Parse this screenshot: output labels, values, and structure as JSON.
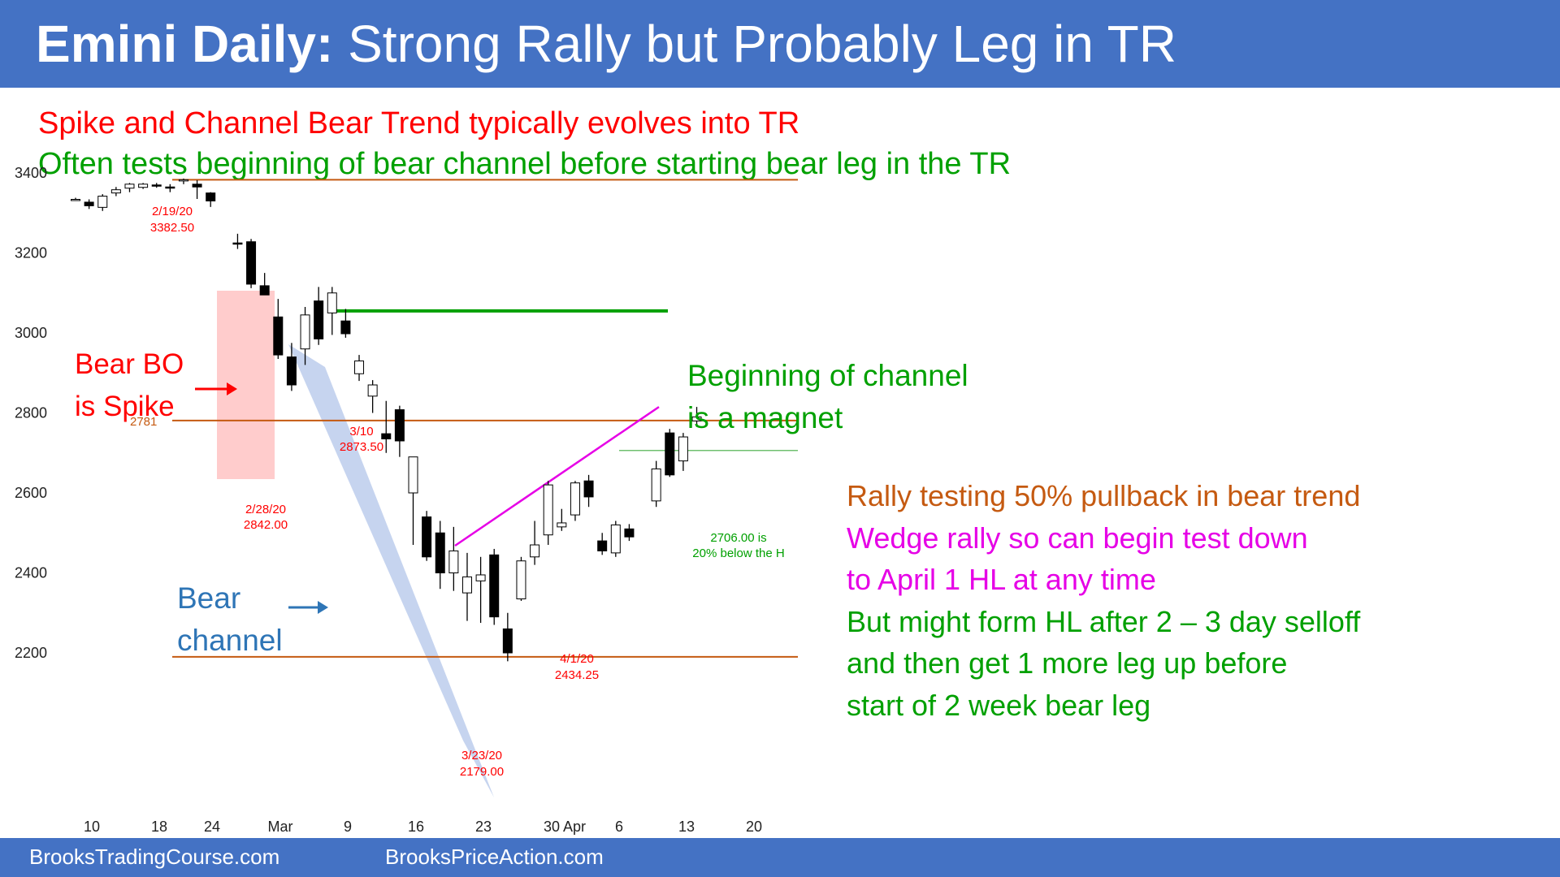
{
  "header": {
    "title_bold": "Emini Daily:",
    "title_rest": "Strong Rally but Probably Leg in TR",
    "background": "#4472c4"
  },
  "subheads": {
    "line1": "Spike and Channel Bear Trend typically evolves into TR",
    "line2": "Often tests beginning of bear channel before starting bear leg in the TR"
  },
  "colors": {
    "red": "#ff0000",
    "green": "#00a000",
    "orange": "#c55a11",
    "magenta": "#e600e6",
    "blue": "#2e75b6",
    "bull_body": "#ffffff",
    "bear_body": "#000000"
  },
  "chart_data": {
    "type": "candlestick",
    "ylim": [
      2000,
      3550
    ],
    "y_ticks": [
      "3400",
      "3200",
      "3000",
      "2800",
      "2600",
      "2400",
      "2200"
    ],
    "x_ticks": [
      "10",
      "18",
      "24",
      "Mar",
      "9",
      "16",
      "23",
      "30 Apr",
      "6",
      "13",
      "20"
    ],
    "candles": [
      {
        "o": 3334,
        "h": 3338,
        "l": 3330,
        "c": 3334
      },
      {
        "o": 3327,
        "h": 3334,
        "l": 3310,
        "c": 3318
      },
      {
        "o": 3314,
        "h": 3347,
        "l": 3305,
        "c": 3342
      },
      {
        "o": 3350,
        "h": 3365,
        "l": 3342,
        "c": 3358
      },
      {
        "o": 3362,
        "h": 3375,
        "l": 3352,
        "c": 3372
      },
      {
        "o": 3364,
        "h": 3375,
        "l": 3360,
        "c": 3372
      },
      {
        "o": 3370,
        "h": 3375,
        "l": 3363,
        "c": 3369
      },
      {
        "o": 3365,
        "h": 3372,
        "l": 3352,
        "c": 3363
      },
      {
        "o": 3380,
        "h": 3386,
        "l": 3372,
        "c": 3383
      },
      {
        "o": 3372,
        "h": 3382,
        "l": 3335,
        "c": 3365
      },
      {
        "o": 3350,
        "h": 3352,
        "l": 3315,
        "c": 3330
      },
      {
        "o": 3225,
        "h": 3248,
        "l": 3210,
        "c": 3222
      },
      {
        "o": 3228,
        "h": 3235,
        "l": 3112,
        "c": 3122
      },
      {
        "o": 3118,
        "h": 3150,
        "l": 3095,
        "c": 3095
      },
      {
        "o": 3040,
        "h": 3085,
        "l": 2935,
        "c": 2945
      },
      {
        "o": 2940,
        "h": 2975,
        "l": 2855,
        "c": 2870
      },
      {
        "o": 2960,
        "h": 3065,
        "l": 2920,
        "c": 3045
      },
      {
        "o": 3080,
        "h": 3115,
        "l": 2970,
        "c": 2985
      },
      {
        "o": 3050,
        "h": 3115,
        "l": 2995,
        "c": 3100
      },
      {
        "o": 3030,
        "h": 3060,
        "l": 2988,
        "c": 2998
      },
      {
        "o": 2898,
        "h": 2945,
        "l": 2880,
        "c": 2930
      },
      {
        "o": 2842,
        "h": 2882,
        "l": 2800,
        "c": 2870
      },
      {
        "o": 2748,
        "h": 2830,
        "l": 2700,
        "c": 2735
      },
      {
        "o": 2808,
        "h": 2818,
        "l": 2690,
        "c": 2730
      },
      {
        "o": 2600,
        "h": 2690,
        "l": 2470,
        "c": 2690
      },
      {
        "o": 2540,
        "h": 2555,
        "l": 2430,
        "c": 2440
      },
      {
        "o": 2500,
        "h": 2530,
        "l": 2360,
        "c": 2400
      },
      {
        "o": 2400,
        "h": 2515,
        "l": 2355,
        "c": 2455
      },
      {
        "o": 2350,
        "h": 2450,
        "l": 2280,
        "c": 2390
      },
      {
        "o": 2380,
        "h": 2440,
        "l": 2275,
        "c": 2395
      },
      {
        "o": 2445,
        "h": 2460,
        "l": 2270,
        "c": 2290
      },
      {
        "o": 2260,
        "h": 2300,
        "l": 2179,
        "c": 2200
      },
      {
        "o": 2335,
        "h": 2440,
        "l": 2330,
        "c": 2430
      },
      {
        "o": 2440,
        "h": 2530,
        "l": 2420,
        "c": 2470
      },
      {
        "o": 2495,
        "h": 2630,
        "l": 2470,
        "c": 2620
      },
      {
        "o": 2515,
        "h": 2560,
        "l": 2505,
        "c": 2525
      },
      {
        "o": 2545,
        "h": 2630,
        "l": 2530,
        "c": 2625
      },
      {
        "o": 2630,
        "h": 2645,
        "l": 2565,
        "c": 2590
      },
      {
        "o": 2480,
        "h": 2500,
        "l": 2445,
        "c": 2455
      },
      {
        "o": 2450,
        "h": 2530,
        "l": 2440,
        "c": 2520
      },
      {
        "o": 2510,
        "h": 2522,
        "l": 2480,
        "c": 2490
      },
      {
        "o": 2580,
        "h": 2680,
        "l": 2565,
        "c": 2660
      },
      {
        "o": 2750,
        "h": 2760,
        "l": 2640,
        "c": 2645
      },
      {
        "o": 2680,
        "h": 2750,
        "l": 2655,
        "c": 2740
      },
      {
        "o": 2780,
        "h": 2815,
        "l": 2765,
        "c": 2790
      }
    ],
    "horizontal_lines": [
      {
        "label": "",
        "value": 3383,
        "color": "#c55a11"
      },
      {
        "label": "2781",
        "value": 2781,
        "color": "#c55a11"
      },
      {
        "label": "",
        "value": 2190,
        "color": "#c55a11"
      },
      {
        "label": "",
        "value": 3055,
        "color": "#00a000"
      },
      {
        "label": "",
        "value": 2706,
        "color": "#70c070"
      }
    ],
    "wedge_line": [
      2468,
      2815
    ],
    "price_labels": {
      "hi_date": "2/19/20",
      "hi_value": "3382.50",
      "mar10_date": "3/10",
      "mar10_value": "2873.50",
      "feb28_date": "2/28/20",
      "feb28_value": "2842.00",
      "mar23_date": "3/23/20",
      "mar23_value": "2179.00",
      "apr1_date": "4/1/20",
      "apr1_value": "2434.25",
      "line_2706_a": "2706.00 is",
      "line_2706_b": "20% below the H"
    },
    "annotations": {
      "bear_bo_1": "Bear BO",
      "bear_bo_2": "is Spike",
      "channel_1": "Beginning of channel",
      "channel_2": "is a magnet",
      "bear_ch_1": "Bear",
      "bear_ch_2": "channel",
      "r1": "Rally testing 50% pullback in bear trend",
      "r2": "Wedge rally so can begin test down",
      "r3": "to April 1 HL at any time",
      "r4": "But might form HL after 2 – 3 day selloff",
      "r5": "and then get 1 more leg up before",
      "r6": "start of 2 week bear leg"
    }
  },
  "footer": {
    "left": "BrooksTradingCourse.com",
    "right": "BrooksPriceAction.com"
  }
}
